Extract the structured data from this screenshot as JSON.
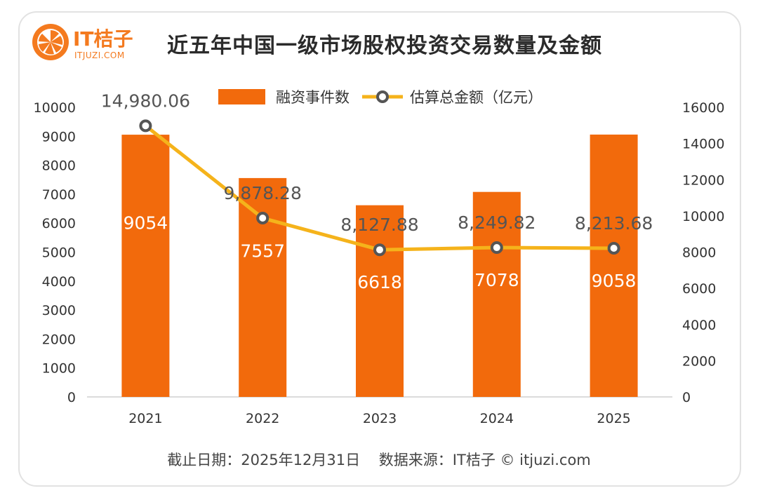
{
  "logo": {
    "text": "IT桔子",
    "url": "ITJUZI.COM"
  },
  "title": "近五年中国一级市场股权投资交易数量及金额",
  "footer": {
    "date": "截止日期：2025年12月31日",
    "source": "数据来源：IT桔子 © itjuzi.com"
  },
  "colors": {
    "bar": "#f26a0c",
    "line": "#f5b31b",
    "marker_ring": "#555555"
  },
  "chart_data": {
    "type": "bar+line",
    "title": "近五年中国一级市场股权投资交易数量及金额",
    "categories": [
      "2021",
      "2022",
      "2023",
      "2024",
      "2025"
    ],
    "series": [
      {
        "name": "融资事件数",
        "type": "bar",
        "axis": "left",
        "values": [
          9054,
          7557,
          6618,
          7078,
          9058
        ],
        "labels": [
          "9054",
          "7557",
          "6618",
          "7078",
          "9058"
        ]
      },
      {
        "name": "估算总金额（亿元）",
        "type": "line",
        "axis": "right",
        "values": [
          14980.06,
          9878.28,
          8127.88,
          8249.82,
          8213.68
        ],
        "labels": [
          "14,980.06",
          "9,878.28",
          "8,127.88",
          "8,249.82",
          "8,213.68"
        ]
      }
    ],
    "left_axis": {
      "min": 0,
      "max": 10000,
      "ticks": [
        "0",
        "1000",
        "2000",
        "3000",
        "4000",
        "5000",
        "6000",
        "7000",
        "8000",
        "9000",
        "10000"
      ]
    },
    "right_axis": {
      "min": 0,
      "max": 16000,
      "ticks": [
        "0",
        "2000",
        "4000",
        "6000",
        "8000",
        "10000",
        "12000",
        "14000",
        "16000"
      ]
    },
    "legend_position": "top-center"
  }
}
